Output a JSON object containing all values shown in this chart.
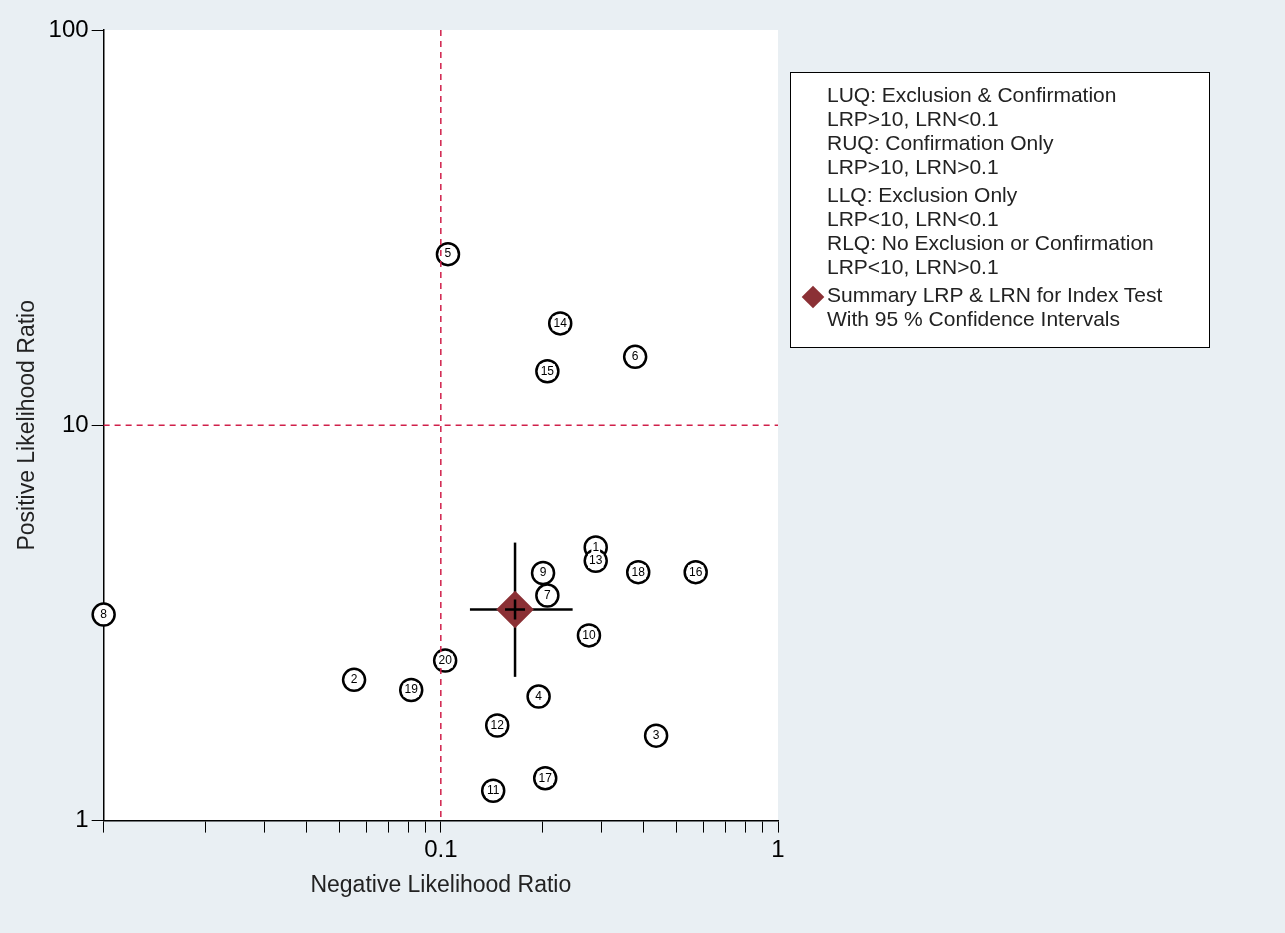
{
  "chart_data": {
    "type": "scatter",
    "xlabel": "Negative Likelihood Ratio",
    "ylabel": "Positive Likelihood Ratio",
    "log": "xy",
    "grid": false,
    "legend": "top right",
    "xlim": [
      0.01,
      1
    ],
    "ylim": [
      1,
      100
    ],
    "xticks": [
      {
        "value": 0.01,
        "label": null
      },
      {
        "value": 0.02,
        "label": null
      },
      {
        "value": 0.03,
        "label": null
      },
      {
        "value": 0.04,
        "label": null
      },
      {
        "value": 0.05,
        "label": null
      },
      {
        "value": 0.06,
        "label": null
      },
      {
        "value": 0.07,
        "label": null
      },
      {
        "value": 0.08,
        "label": null
      },
      {
        "value": 0.09,
        "label": null
      },
      0.1,
      {
        "value": 0.2,
        "label": null
      },
      {
        "value": 0.3,
        "label": null
      },
      {
        "value": 0.4,
        "label": null
      },
      {
        "value": 0.5,
        "label": null
      },
      {
        "value": 0.6,
        "label": null
      },
      {
        "value": 0.7,
        "label": null
      },
      {
        "value": 0.8,
        "label": null
      },
      {
        "value": 0.9,
        "label": null
      },
      1
    ],
    "yticks": [
      1,
      10,
      100
    ],
    "ref_lines": [
      {
        "axis": "x",
        "value": 0.1,
        "color": "#d0204a",
        "line_style": "dashed"
      },
      {
        "axis": "y",
        "value": 10,
        "color": "#d0204a",
        "line_style": "dashed"
      }
    ],
    "series": [
      {
        "color": "#000000",
        "marker": "circle",
        "x": [
          0.288,
          0.0553,
          0.435,
          0.195,
          0.105,
          0.377,
          0.207,
          0.01,
          0.201,
          0.275,
          0.143,
          0.147,
          0.288,
          0.226,
          0.207,
          0.57,
          0.204,
          0.385,
          0.0817,
          0.103
        ],
        "values": [
          4.91,
          2.27,
          1.64,
          2.06,
          27.1,
          14.9,
          3.71,
          3.32,
          4.23,
          2.94,
          1.19,
          1.74,
          4.54,
          18.1,
          13.7,
          4.25,
          1.28,
          4.25,
          2.14,
          2.54
        ]
      },
      {
        "name": "Summary LRP & LRN for Index Test\nWith 95 % Confidence Intervals",
        "color": "#8b3035",
        "marker": "diamond",
        "x": [
          0.166
        ],
        "values": [
          3.42
        ],
        "errors": [
          [
            2.31,
            5.05
          ]
        ],
        "xerrors": [
          [
            0.122,
            0.246
          ]
        ]
      }
    ],
    "annotations": [
      "LUQ: Exclusion & Confirmation\nLRP>10, LRN<0.1\nRUQ: Confirmation Only\nLRP>10, LRN>0.1",
      "LLQ: Exclusion Only\nLRP<10, LRN<0.1\nRLQ: No Exclusion or Confirmation\nLRP<10, LRN>0.1",
      {
        "text": "1",
        "x": 0.288,
        "y": 4.91
      },
      {
        "text": "2",
        "x": 0.0553,
        "y": 2.27
      },
      {
        "text": "3",
        "x": 0.435,
        "y": 1.64
      },
      {
        "text": "4",
        "x": 0.195,
        "y": 2.06
      },
      {
        "text": "5",
        "x": 0.105,
        "y": 27.1
      },
      {
        "text": "6",
        "x": 0.377,
        "y": 14.9
      },
      {
        "text": "7",
        "x": 0.207,
        "y": 3.71
      },
      {
        "text": "8",
        "x": 0.01,
        "y": 3.32
      },
      {
        "text": "9",
        "x": 0.201,
        "y": 4.23
      },
      {
        "text": "10",
        "x": 0.275,
        "y": 2.94
      },
      {
        "text": "11",
        "x": 0.143,
        "y": 1.19
      },
      {
        "text": "12",
        "x": 0.147,
        "y": 1.74
      },
      {
        "text": "13",
        "x": 0.288,
        "y": 4.54
      },
      {
        "text": "14",
        "x": 0.226,
        "y": 18.1
      },
      {
        "text": "15",
        "x": 0.207,
        "y": 13.7
      },
      {
        "text": "16",
        "x": 0.57,
        "y": 4.25
      },
      {
        "text": "17",
        "x": 0.204,
        "y": 1.28
      },
      {
        "text": "18",
        "x": 0.385,
        "y": 4.25
      },
      {
        "text": "19",
        "x": 0.0817,
        "y": 2.14
      },
      {
        "text": "20",
        "x": 0.103,
        "y": 2.54
      }
    ]
  }
}
